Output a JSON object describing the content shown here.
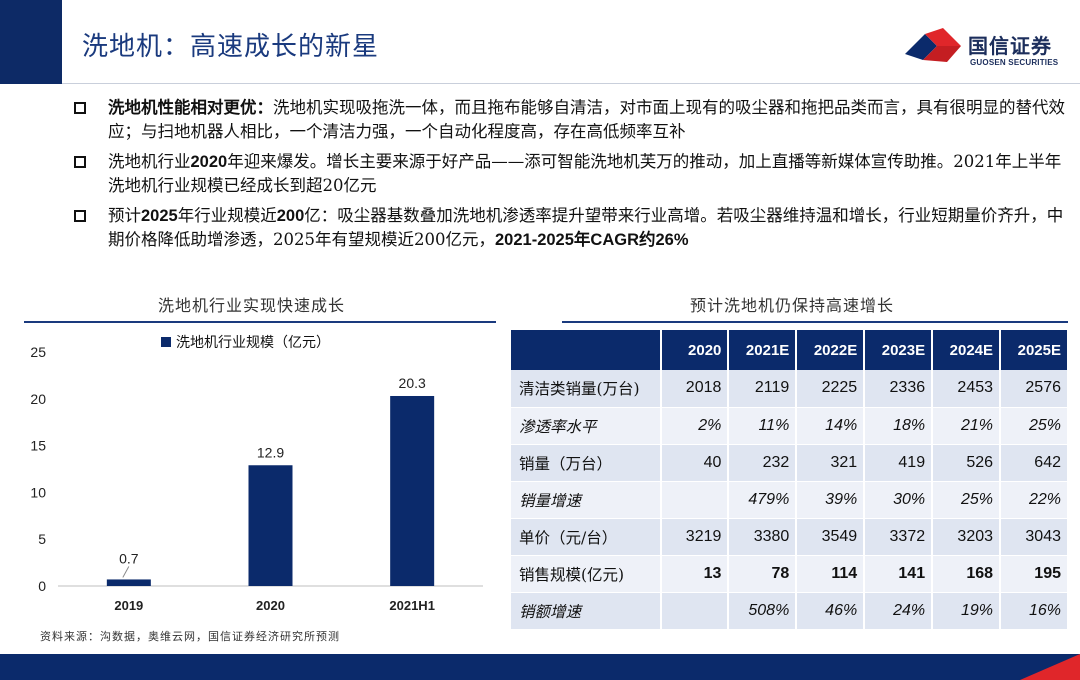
{
  "page": {
    "title": "洗地机：高速成长的新星",
    "logo_name": "国信证券",
    "logo_sub": "GUOSEN SECURITIES",
    "brand_color": "#0b2a6b",
    "accent_color": "#e0262a"
  },
  "bullets": [
    {
      "text": "洗地机性能相对更优：洗地机实现吸拖洗一体，而且拖布能够自清洁，对市面上现有的吸尘器和拖把品类而言，具有很明显的替代效应；与扫地机器人相比，一个清洁力强，一个自动化程度高，存在高低频率互补"
    },
    {
      "text": "洗地机行业2020年迎来爆发。增长主要来源于好产品——添可智能洗地机芙万的推动，加上直播等新媒体宣传助推。2021年上半年洗地机行业规模已经成长到超20亿元"
    },
    {
      "text": "预计2025年行业规模近200亿：吸尘器基数叠加洗地机渗透率提升望带来行业高增。若吸尘器维持温和增长，行业短期量价齐升，中期价格降低助增渗透，2025年有望规模近200亿元，2021-2025年CAGR约26%"
    }
  ],
  "left_section_title": "洗地机行业实现快速成长",
  "right_section_title": "预计洗地机仍保持高速增长",
  "chart_data": {
    "type": "bar",
    "categories": [
      "2019",
      "2020",
      "2021H1"
    ],
    "series": [
      {
        "name": "洗地机行业规模（亿元）",
        "values": [
          0.7,
          12.9,
          20.3
        ],
        "color": "#0b2a6b"
      }
    ],
    "data_labels": [
      "0.7",
      "12.9",
      "20.3"
    ],
    "ylim": [
      0,
      25
    ],
    "yticks": [
      "0",
      "5",
      "10",
      "15",
      "20",
      "25"
    ],
    "legend_position": "top",
    "grid": false
  },
  "table": {
    "headers": [
      "",
      "2020",
      "2021E",
      "2022E",
      "2023E",
      "2024E",
      "2025E"
    ],
    "rows": [
      {
        "label": "清洁类销量(万台)",
        "values": [
          "2018",
          "2119",
          "2225",
          "2336",
          "2453",
          "2576"
        ],
        "style": "normal"
      },
      {
        "label": "渗透率水平",
        "values": [
          "2%",
          "11%",
          "14%",
          "18%",
          "21%",
          "25%"
        ],
        "style": "italic"
      },
      {
        "label": "销量（万台）",
        "values": [
          "40",
          "232",
          "321",
          "419",
          "526",
          "642"
        ],
        "style": "normal"
      },
      {
        "label": "销量增速",
        "values": [
          "",
          "479%",
          "39%",
          "30%",
          "25%",
          "22%"
        ],
        "style": "italic"
      },
      {
        "label": "单价（元/台）",
        "values": [
          "3219",
          "3380",
          "3549",
          "3372",
          "3203",
          "3043"
        ],
        "style": "normal"
      },
      {
        "label": "销售规模(亿元)",
        "values": [
          "13",
          "78",
          "114",
          "141",
          "168",
          "195"
        ],
        "style": "bold"
      },
      {
        "label": "销额增速",
        "values": [
          "",
          "508%",
          "46%",
          "24%",
          "19%",
          "16%"
        ],
        "style": "italic"
      }
    ]
  },
  "source": "资料来源：沟数据，奥维云网，国信证券经济研究所预测"
}
